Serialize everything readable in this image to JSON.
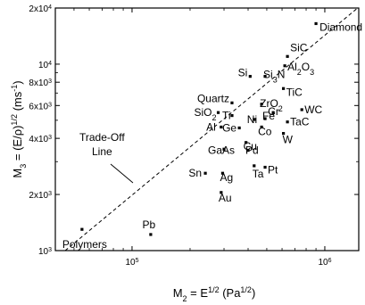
{
  "chart_data": {
    "type": "scatter",
    "x_scale": "log",
    "y_scale": "log",
    "xlim": [
      40000,
      1500000
    ],
    "ylim": [
      1000,
      20000
    ],
    "xlabel_parts": [
      "M",
      "2",
      " = E",
      "1/2",
      "  (Pa",
      "1/2",
      ")"
    ],
    "ylabel_parts": [
      "M",
      "3",
      " = (E/",
      "ρ",
      ")",
      "1/2",
      "  (ms",
      "-1",
      ")"
    ],
    "x_ticks": [
      {
        "value": 100000,
        "label": "10",
        "exp": "5"
      },
      {
        "value": 1000000,
        "label": "10",
        "exp": "6"
      }
    ],
    "y_ticks": [
      {
        "value": 1000,
        "label": "10",
        "exp": "3"
      },
      {
        "value": 2000,
        "label": "2x10",
        "exp": "3"
      },
      {
        "value": 4000,
        "label": "4x10",
        "exp": "3"
      },
      {
        "value": 6000,
        "label": "6x10",
        "exp": "3"
      },
      {
        "value": 8000,
        "label": "8x10",
        "exp": "3"
      },
      {
        "value": 10000,
        "label": "10",
        "exp": "4"
      },
      {
        "value": 20000,
        "label": "2x10",
        "exp": "4"
      }
    ],
    "trade_off_line": {
      "label_lines": [
        "Trade-Off",
        "Line"
      ],
      "points": [
        [
          45000,
          1000
        ],
        [
          1480000,
          20000
        ]
      ]
    },
    "points": [
      {
        "label": "Diamond",
        "x": 900000,
        "y": 16500
      },
      {
        "label": "SiC",
        "x": 640000,
        "y": 11000
      },
      {
        "label": "Al2O3",
        "x": 620000,
        "y": 9800
      },
      {
        "label": "Si",
        "x": 410000,
        "y": 8600
      },
      {
        "label": "Si3N",
        "x": 490000,
        "y": 8600
      },
      {
        "label": "TiC",
        "x": 610000,
        "y": 7400
      },
      {
        "label": "Quartz",
        "x": 330000,
        "y": 6200
      },
      {
        "label": "ZrO2",
        "x": 470000,
        "y": 6100
      },
      {
        "label": "WC",
        "x": 760000,
        "y": 5700
      },
      {
        "label": "SiO2",
        "x": 280000,
        "y": 5500
      },
      {
        "label": "Ti",
        "x": 330000,
        "y": 5300
      },
      {
        "label": "Cr",
        "x": 540000,
        "y": 5500
      },
      {
        "label": "Ni",
        "x": 430000,
        "y": 5050
      },
      {
        "label": "Fe",
        "x": 490000,
        "y": 5100
      },
      {
        "label": "TaC",
        "x": 640000,
        "y": 4900
      },
      {
        "label": "Al",
        "x": 290000,
        "y": 4600
      },
      {
        "label": "Ge",
        "x": 360000,
        "y": 4550
      },
      {
        "label": "Co",
        "x": 470000,
        "y": 4600
      },
      {
        "label": "W",
        "x": 610000,
        "y": 4250
      },
      {
        "label": "Cu",
        "x": 390000,
        "y": 3800
      },
      {
        "label": "GaAs",
        "x": 300000,
        "y": 3500
      },
      {
        "label": "Pd",
        "x": 400000,
        "y": 3450
      },
      {
        "label": "Ta",
        "x": 430000,
        "y": 2850
      },
      {
        "label": "Pt",
        "x": 490000,
        "y": 2800
      },
      {
        "label": "Sn",
        "x": 240000,
        "y": 2600
      },
      {
        "label": "Ag",
        "x": 295000,
        "y": 2600
      },
      {
        "label": "Au",
        "x": 290000,
        "y": 2050
      },
      {
        "label": "Pb",
        "x": 125000,
        "y": 1220
      },
      {
        "label": "Polymers",
        "x": 55000,
        "y": 1300
      }
    ]
  }
}
